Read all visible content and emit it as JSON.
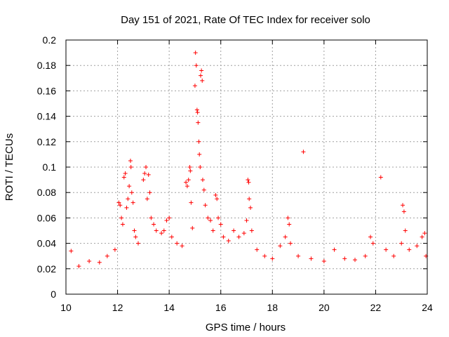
{
  "chart_data": {
    "type": "scatter",
    "title": "Day 151 of 2021, Rate Of TEC Index for receiver solo",
    "xlabel": "GPS time / hours",
    "ylabel": "ROTI / TECUs",
    "xlim": [
      10,
      24
    ],
    "ylim": [
      0,
      0.2
    ],
    "x_ticks": [
      10,
      12,
      14,
      16,
      18,
      20,
      22,
      24
    ],
    "y_ticks": [
      0,
      0.02,
      0.04,
      0.06,
      0.08,
      0.1,
      0.12,
      0.14,
      0.16,
      0.18,
      0.2
    ],
    "grid": true,
    "marker": "plus",
    "color": "#ff0000",
    "series": [
      {
        "name": "ROTI",
        "points": [
          [
            10.2,
            0.034
          ],
          [
            10.5,
            0.022
          ],
          [
            10.9,
            0.026
          ],
          [
            11.3,
            0.025
          ],
          [
            11.6,
            0.03
          ],
          [
            11.9,
            0.035
          ],
          [
            12.05,
            0.072
          ],
          [
            12.1,
            0.07
          ],
          [
            12.15,
            0.06
          ],
          [
            12.2,
            0.055
          ],
          [
            12.25,
            0.092
          ],
          [
            12.3,
            0.095
          ],
          [
            12.35,
            0.068
          ],
          [
            12.4,
            0.075
          ],
          [
            12.45,
            0.085
          ],
          [
            12.5,
            0.105
          ],
          [
            12.52,
            0.1
          ],
          [
            12.55,
            0.08
          ],
          [
            12.6,
            0.072
          ],
          [
            12.65,
            0.05
          ],
          [
            12.7,
            0.045
          ],
          [
            12.8,
            0.04
          ],
          [
            13.0,
            0.09
          ],
          [
            13.05,
            0.095
          ],
          [
            13.1,
            0.1
          ],
          [
            13.15,
            0.075
          ],
          [
            13.2,
            0.094
          ],
          [
            13.25,
            0.08
          ],
          [
            13.3,
            0.06
          ],
          [
            13.4,
            0.055
          ],
          [
            13.5,
            0.05
          ],
          [
            13.7,
            0.048
          ],
          [
            13.8,
            0.05
          ],
          [
            13.9,
            0.058
          ],
          [
            14.0,
            0.06
          ],
          [
            14.1,
            0.045
          ],
          [
            14.3,
            0.04
          ],
          [
            14.5,
            0.038
          ],
          [
            14.65,
            0.088
          ],
          [
            14.7,
            0.085
          ],
          [
            14.75,
            0.09
          ],
          [
            14.8,
            0.1
          ],
          [
            14.82,
            0.097
          ],
          [
            14.85,
            0.072
          ],
          [
            14.9,
            0.052
          ],
          [
            15.0,
            0.164
          ],
          [
            15.02,
            0.19
          ],
          [
            15.05,
            0.18
          ],
          [
            15.08,
            0.145
          ],
          [
            15.1,
            0.143
          ],
          [
            15.12,
            0.135
          ],
          [
            15.15,
            0.12
          ],
          [
            15.17,
            0.11
          ],
          [
            15.2,
            0.1
          ],
          [
            15.22,
            0.172
          ],
          [
            15.25,
            0.176
          ],
          [
            15.28,
            0.168
          ],
          [
            15.3,
            0.09
          ],
          [
            15.35,
            0.082
          ],
          [
            15.4,
            0.07
          ],
          [
            15.5,
            0.06
          ],
          [
            15.6,
            0.058
          ],
          [
            15.7,
            0.05
          ],
          [
            15.8,
            0.078
          ],
          [
            15.85,
            0.075
          ],
          [
            15.9,
            0.06
          ],
          [
            16.0,
            0.055
          ],
          [
            16.1,
            0.045
          ],
          [
            16.3,
            0.042
          ],
          [
            16.5,
            0.05
          ],
          [
            16.7,
            0.045
          ],
          [
            16.9,
            0.048
          ],
          [
            17.0,
            0.058
          ],
          [
            17.05,
            0.09
          ],
          [
            17.08,
            0.088
          ],
          [
            17.1,
            0.075
          ],
          [
            17.15,
            0.068
          ],
          [
            17.2,
            0.05
          ],
          [
            17.4,
            0.035
          ],
          [
            17.7,
            0.03
          ],
          [
            18.0,
            0.028
          ],
          [
            18.3,
            0.038
          ],
          [
            18.5,
            0.045
          ],
          [
            18.6,
            0.06
          ],
          [
            18.65,
            0.055
          ],
          [
            18.7,
            0.04
          ],
          [
            19.0,
            0.03
          ],
          [
            19.2,
            0.112
          ],
          [
            19.5,
            0.028
          ],
          [
            20.0,
            0.026
          ],
          [
            20.4,
            0.035
          ],
          [
            20.8,
            0.028
          ],
          [
            21.2,
            0.027
          ],
          [
            21.6,
            0.03
          ],
          [
            21.8,
            0.045
          ],
          [
            21.9,
            0.04
          ],
          [
            22.2,
            0.092
          ],
          [
            22.4,
            0.035
          ],
          [
            22.7,
            0.03
          ],
          [
            23.0,
            0.04
          ],
          [
            23.05,
            0.07
          ],
          [
            23.1,
            0.065
          ],
          [
            23.15,
            0.05
          ],
          [
            23.3,
            0.035
          ],
          [
            23.6,
            0.038
          ],
          [
            23.8,
            0.045
          ],
          [
            23.9,
            0.048
          ],
          [
            23.95,
            0.03
          ]
        ]
      }
    ]
  }
}
